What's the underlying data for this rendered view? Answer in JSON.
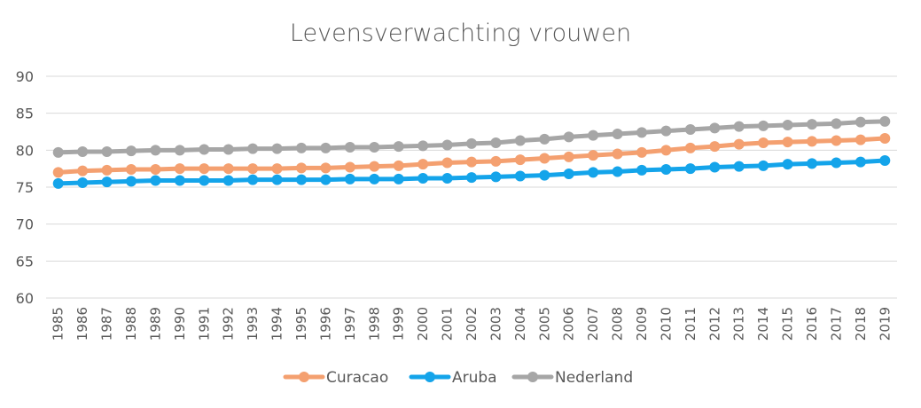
{
  "chart_data": {
    "type": "line",
    "title": "Levensverwachting vrouwen",
    "xlabel": "",
    "ylabel": "",
    "ylim": [
      60,
      90
    ],
    "yticks": [
      60,
      65,
      70,
      75,
      80,
      85,
      90
    ],
    "grid": true,
    "legend_position": "bottom",
    "categories": [
      "1985",
      "1986",
      "1987",
      "1988",
      "1989",
      "1990",
      "1991",
      "1992",
      "1993",
      "1994",
      "1995",
      "1996",
      "1997",
      "1998",
      "1999",
      "2000",
      "2001",
      "2002",
      "2003",
      "2004",
      "2005",
      "2006",
      "2007",
      "2008",
      "2009",
      "2010",
      "2011",
      "2012",
      "2013",
      "2014",
      "2015",
      "2016",
      "2017",
      "2018",
      "2019"
    ],
    "series": [
      {
        "name": "Curacao",
        "color": "#f4a070",
        "values": [
          77.0,
          77.2,
          77.3,
          77.4,
          77.4,
          77.5,
          77.5,
          77.5,
          77.5,
          77.5,
          77.6,
          77.6,
          77.7,
          77.8,
          77.9,
          78.1,
          78.3,
          78.4,
          78.5,
          78.7,
          78.9,
          79.1,
          79.3,
          79.5,
          79.7,
          80.0,
          80.3,
          80.5,
          80.8,
          81.0,
          81.1,
          81.2,
          81.3,
          81.4,
          81.6
        ]
      },
      {
        "name": "Aruba",
        "color": "#14a4ea",
        "values": [
          75.5,
          75.6,
          75.7,
          75.8,
          75.9,
          75.9,
          75.9,
          75.9,
          76.0,
          76.0,
          76.0,
          76.0,
          76.1,
          76.1,
          76.1,
          76.2,
          76.2,
          76.3,
          76.4,
          76.5,
          76.6,
          76.8,
          77.0,
          77.1,
          77.3,
          77.4,
          77.5,
          77.7,
          77.8,
          77.9,
          78.1,
          78.2,
          78.3,
          78.4,
          78.6
        ]
      },
      {
        "name": "Nederland",
        "color": "#a6a6a6",
        "values": [
          79.7,
          79.8,
          79.8,
          79.9,
          80.0,
          80.0,
          80.1,
          80.1,
          80.2,
          80.2,
          80.3,
          80.3,
          80.4,
          80.4,
          80.5,
          80.6,
          80.7,
          80.9,
          81.0,
          81.3,
          81.5,
          81.8,
          82.0,
          82.2,
          82.4,
          82.6,
          82.8,
          83.0,
          83.2,
          83.3,
          83.4,
          83.5,
          83.6,
          83.8,
          83.9
        ]
      }
    ]
  }
}
